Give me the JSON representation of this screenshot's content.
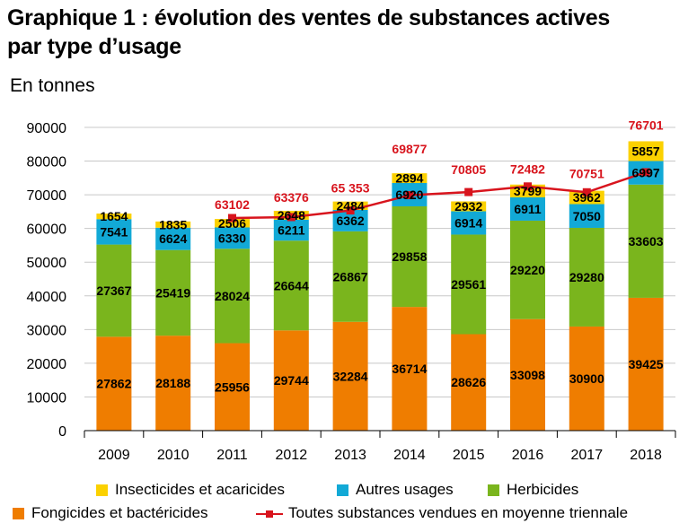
{
  "title_line1": "Graphique 1 : évolution des ventes de substances actives",
  "title_line2": "par type d’usage",
  "subtitle": "En tonnes",
  "colors": {
    "fongicides": "#ef7d00",
    "herbicides": "#7ab51d",
    "autres": "#12a9d6",
    "insecticides": "#fbd100",
    "line": "#d8141d"
  },
  "legend": {
    "insecticides": "Insecticides et acaricides",
    "autres": "Autres usages",
    "herbicides": "Herbicides",
    "fongicides": "Fongicides et bactéricides",
    "line": "Toutes substances vendues en moyenne triennale"
  },
  "chart_data": {
    "type": "bar",
    "stacked": true,
    "categories": [
      "2009",
      "2010",
      "2011",
      "2012",
      "2013",
      "2014",
      "2015",
      "2016",
      "2017",
      "2018"
    ],
    "ylim": [
      0,
      90000
    ],
    "yticks": [
      "0",
      "10000",
      "20000",
      "30000",
      "40000",
      "50000",
      "60000",
      "70000",
      "80000",
      "90000"
    ],
    "series": [
      {
        "name": "Fongicides et bactéricides",
        "key": "fongicides",
        "values": [
          27862,
          28188,
          25956,
          29744,
          32284,
          36714,
          28626,
          33098,
          30900,
          39425
        ],
        "labels": [
          "27862",
          "28188",
          "25956",
          "29744",
          "32284",
          "36714",
          "28626",
          "33098",
          "30900",
          "39425"
        ]
      },
      {
        "name": "Herbicides",
        "key": "herbicides",
        "values": [
          27367,
          25419,
          28024,
          26644,
          26867,
          29858,
          29561,
          29220,
          29280,
          33603
        ],
        "labels": [
          "27367",
          "25419",
          "28024",
          "26644",
          "26867",
          "29858",
          "29561",
          "29220",
          "29280",
          "33603"
        ]
      },
      {
        "name": "Autres usages",
        "key": "autres",
        "values": [
          7541,
          6624,
          6330,
          6211,
          6362,
          6920,
          6914,
          6911,
          7050,
          6997
        ],
        "labels": [
          "7541",
          "6624",
          "6330",
          "6211",
          "6362",
          "6920",
          "6914",
          "6911",
          "7050",
          "6997"
        ]
      },
      {
        "name": "Insecticides et acaricides",
        "key": "insecticides",
        "values": [
          1654,
          1835,
          2506,
          2648,
          2484,
          2894,
          2932,
          3799,
          3962,
          5857
        ],
        "labels": [
          "1654",
          "1835",
          "2506",
          "2648",
          "2484",
          "2894",
          "2932",
          "3799",
          "3962",
          "5857"
        ]
      }
    ],
    "line": {
      "name": "Toutes substances vendues en moyenne triennale",
      "values": [
        null,
        null,
        63102,
        63376,
        65353,
        69877,
        70805,
        72482,
        70751,
        76701
      ],
      "labels": [
        null,
        null,
        "63102",
        "63376",
        "65 353",
        "69877",
        "70805",
        "72482",
        "70751",
        "76701"
      ]
    }
  }
}
